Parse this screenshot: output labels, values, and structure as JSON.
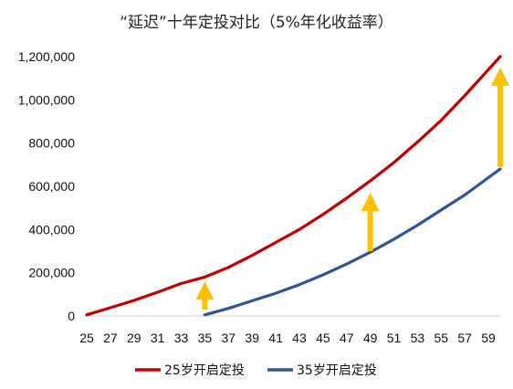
{
  "chart_data": {
    "type": "line",
    "title": "“延迟”十年定投对比（5%年化收益率）",
    "xlabel": "",
    "ylabel": "",
    "x_tick_labels": [
      "25",
      "27",
      "29",
      "31",
      "33",
      "35",
      "37",
      "39",
      "41",
      "43",
      "45",
      "47",
      "49",
      "51",
      "53",
      "55",
      "57",
      "59"
    ],
    "y_tick_labels": [
      "0",
      "200,000",
      "400,000",
      "600,000",
      "800,000",
      "1,000,000",
      "1,200,000"
    ],
    "xlim": [
      25,
      60
    ],
    "ylim": [
      0,
      1200000
    ],
    "grid": false,
    "legend_position": "bottom",
    "series": [
      {
        "name": "25岁开启定投",
        "color": "#c00000",
        "x": [
          25,
          27,
          29,
          31,
          33,
          35,
          37,
          39,
          41,
          43,
          45,
          47,
          49,
          51,
          53,
          55,
          57,
          59,
          60
        ],
        "y": [
          5000,
          38000,
          72000,
          110000,
          150000,
          180000,
          225000,
          280000,
          340000,
          400000,
          470000,
          545000,
          625000,
          710000,
          805000,
          905000,
          1020000,
          1140000,
          1200000
        ]
      },
      {
        "name": "35岁开启定投",
        "color": "#2f5597",
        "x": [
          35,
          37,
          39,
          41,
          43,
          45,
          47,
          49,
          51,
          53,
          55,
          57,
          59,
          60
        ],
        "y": [
          5000,
          35000,
          70000,
          105000,
          145000,
          190000,
          240000,
          295000,
          355000,
          420000,
          490000,
          560000,
          640000,
          680000
        ]
      }
    ],
    "annotations": [
      {
        "type": "arrow",
        "x": 35,
        "y_from": 30000,
        "y_to": 160000,
        "color": "#ffc000"
      },
      {
        "type": "arrow",
        "x": 49,
        "y_from": 300000,
        "y_to": 570000,
        "color": "#ffc000"
      },
      {
        "type": "arrow",
        "x": 60,
        "y_from": 690000,
        "y_to": 1150000,
        "color": "#ffc000"
      }
    ]
  }
}
